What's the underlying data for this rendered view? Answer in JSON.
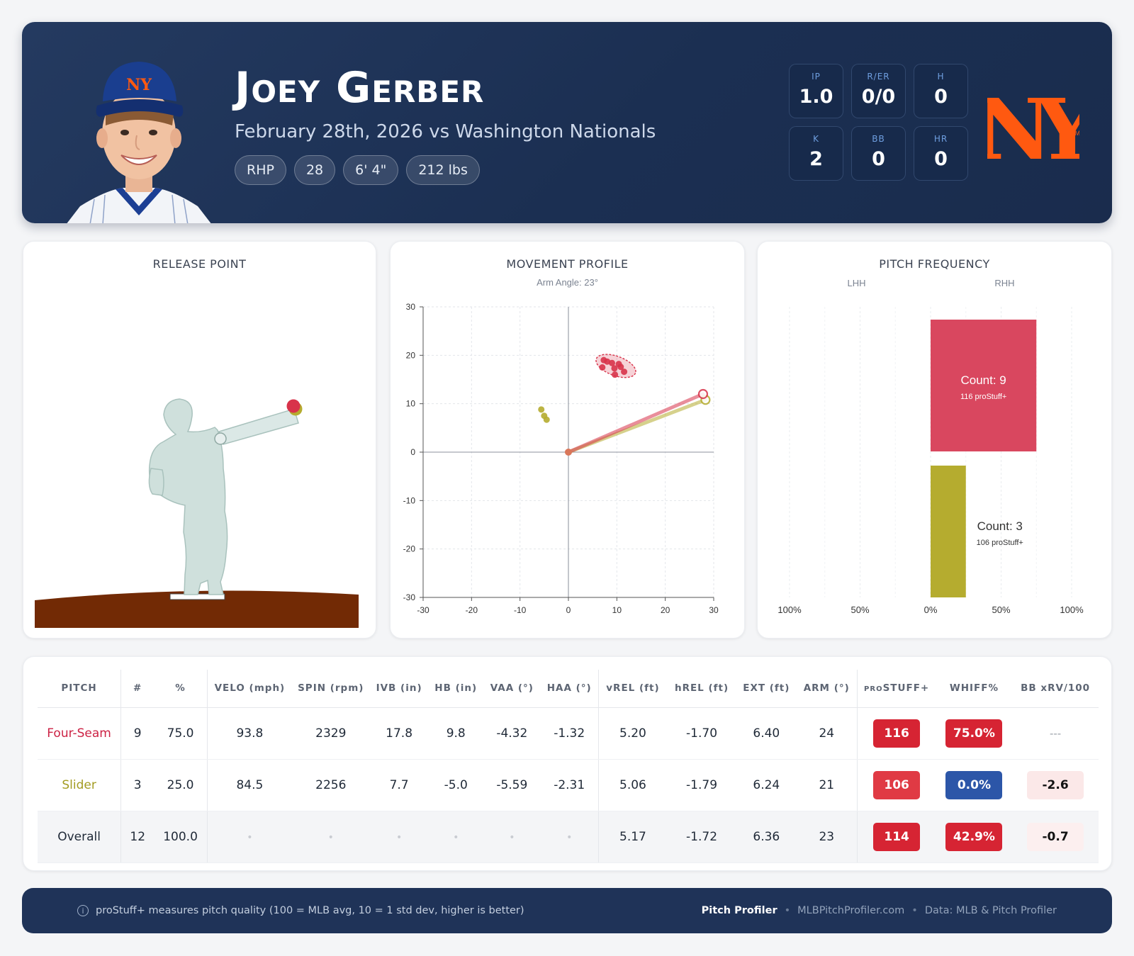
{
  "header": {
    "player_name": "Joey Gerber",
    "game_info": "February 28th, 2026 vs Washington Nationals",
    "pills": [
      "RHP",
      "28",
      "6' 4\"",
      "212 lbs"
    ],
    "stats": [
      {
        "label": "IP",
        "value": "1.0"
      },
      {
        "label": "R/ER",
        "value": "0/0"
      },
      {
        "label": "H",
        "value": "0"
      },
      {
        "label": "K",
        "value": "2"
      },
      {
        "label": "BB",
        "value": "0"
      },
      {
        "label": "HR",
        "value": "0"
      }
    ],
    "logo_text": "NY",
    "logo_tm": "TM",
    "colors": {
      "header_bg": "#1e3356",
      "team_orange": "#ff5910",
      "team_blue": "#1c3f94"
    }
  },
  "release_point": {
    "title": "RELEASE POINT",
    "colors": {
      "mound": "#722a05",
      "silhouette": "#cfe0dc",
      "fourseam": "#d8334a",
      "slider": "#b5ac2f"
    }
  },
  "chart_data": [
    {
      "type": "scatter",
      "title": "MOVEMENT PROFILE",
      "subtitle": "Arm Angle: 23°",
      "xlabel": "",
      "ylabel": "",
      "xlim": [
        -30,
        30
      ],
      "ylim": [
        -30,
        30
      ],
      "xticks": [
        -30,
        -20,
        -10,
        0,
        10,
        20,
        30
      ],
      "yticks": [
        30,
        20,
        10,
        0,
        -10,
        -20,
        -30
      ],
      "grid": true,
      "series": [
        {
          "color": "#d8334a",
          "points": [
            [
              7.3,
              19.0
            ],
            [
              8.0,
              18.7
            ],
            [
              9.0,
              18.4
            ],
            [
              10.4,
              18.2
            ],
            [
              10.8,
              17.6
            ],
            [
              7.0,
              17.5
            ],
            [
              9.5,
              17.3
            ],
            [
              11.5,
              16.6
            ],
            [
              9.6,
              16.0
            ]
          ],
          "ellipse": {
            "cx": 9.8,
            "cy": 17.8,
            "rx": 4.3,
            "ry": 2.0,
            "angle": 20
          },
          "arm_vector": [
            27.8,
            12.0
          ]
        },
        {
          "color": "#b5ac2f",
          "points": [
            [
              -5.6,
              8.8
            ],
            [
              -5.0,
              7.5
            ],
            [
              -4.5,
              6.7
            ]
          ],
          "arm_vector": [
            28.3,
            10.8
          ]
        }
      ]
    },
    {
      "type": "bar",
      "title": "PITCH FREQUENCY",
      "side_labels": [
        "LHH",
        "RHH"
      ],
      "xticks": [
        "100%",
        "50%",
        "0%",
        "50%",
        "100%"
      ],
      "bars": [
        {
          "side": "RHH",
          "value": 0.75,
          "count_label": "Count: 9",
          "stuff_label": "116 proStuff+",
          "color": "#d9475f"
        },
        {
          "side": "RHH",
          "value": 0.25,
          "count_label": "Count: 3",
          "stuff_label": "106 proStuff+",
          "color": "#b5ac2f"
        }
      ]
    }
  ],
  "table": {
    "headers": [
      "PITCH",
      "#",
      "%",
      "VELO (mph)",
      "SPIN (rpm)",
      "IVB (in)",
      "HB (in)",
      "VAA (°)",
      "HAA (°)",
      "vREL (ft)",
      "hREL (ft)",
      "EXT (ft)",
      "ARM (°)",
      "STUFF+",
      "WHIFF%",
      "BB xRV/100"
    ],
    "stuff_prefix": "PRO",
    "rows": [
      {
        "pitch": "Four-Seam",
        "color": "#cc2244",
        "n": "9",
        "pct": "75.0",
        "velo": "93.8",
        "spin": "2329",
        "ivb": "17.8",
        "hb": "9.8",
        "vaa": "-4.32",
        "haa": "-1.32",
        "vrel": "5.20",
        "hrel": "-1.70",
        "ext": "6.40",
        "arm": "24",
        "stuff": "116",
        "stuff_color": "#d62433",
        "whiff": "75.0%",
        "whiff_color": "#d62433",
        "xrv": "---"
      },
      {
        "pitch": "Slider",
        "color": "#a39c22",
        "n": "3",
        "pct": "25.0",
        "velo": "84.5",
        "spin": "2256",
        "ivb": "7.7",
        "hb": "-5.0",
        "vaa": "-5.59",
        "haa": "-2.31",
        "vrel": "5.06",
        "hrel": "-1.79",
        "ext": "6.24",
        "arm": "21",
        "stuff": "106",
        "stuff_color": "#e03a44",
        "whiff": "0.0%",
        "whiff_color": "#2c56a8",
        "xrv": "-2.6",
        "xrv_color": "#fbe8e8"
      },
      {
        "pitch": "Overall",
        "color": "#1f2937",
        "n": "12",
        "pct": "100.0",
        "velo": "•",
        "spin": "•",
        "ivb": "•",
        "hb": "•",
        "vaa": "•",
        "haa": "•",
        "vrel": "5.17",
        "hrel": "-1.72",
        "ext": "6.36",
        "arm": "23",
        "stuff": "114",
        "stuff_color": "#d62433",
        "whiff": "42.9%",
        "whiff_color": "#d62433",
        "xrv": "-0.7",
        "xrv_color": "#fcefef"
      }
    ]
  },
  "footer": {
    "note": "proStuff+ measures pitch quality (100 = MLB avg, 10 = 1 std dev, higher is better)",
    "info_icon": "i",
    "brand": "Pitch Profiler",
    "site": "MLBPitchProfiler.com",
    "data_source": "Data: MLB & Pitch Profiler",
    "separator": "•"
  }
}
